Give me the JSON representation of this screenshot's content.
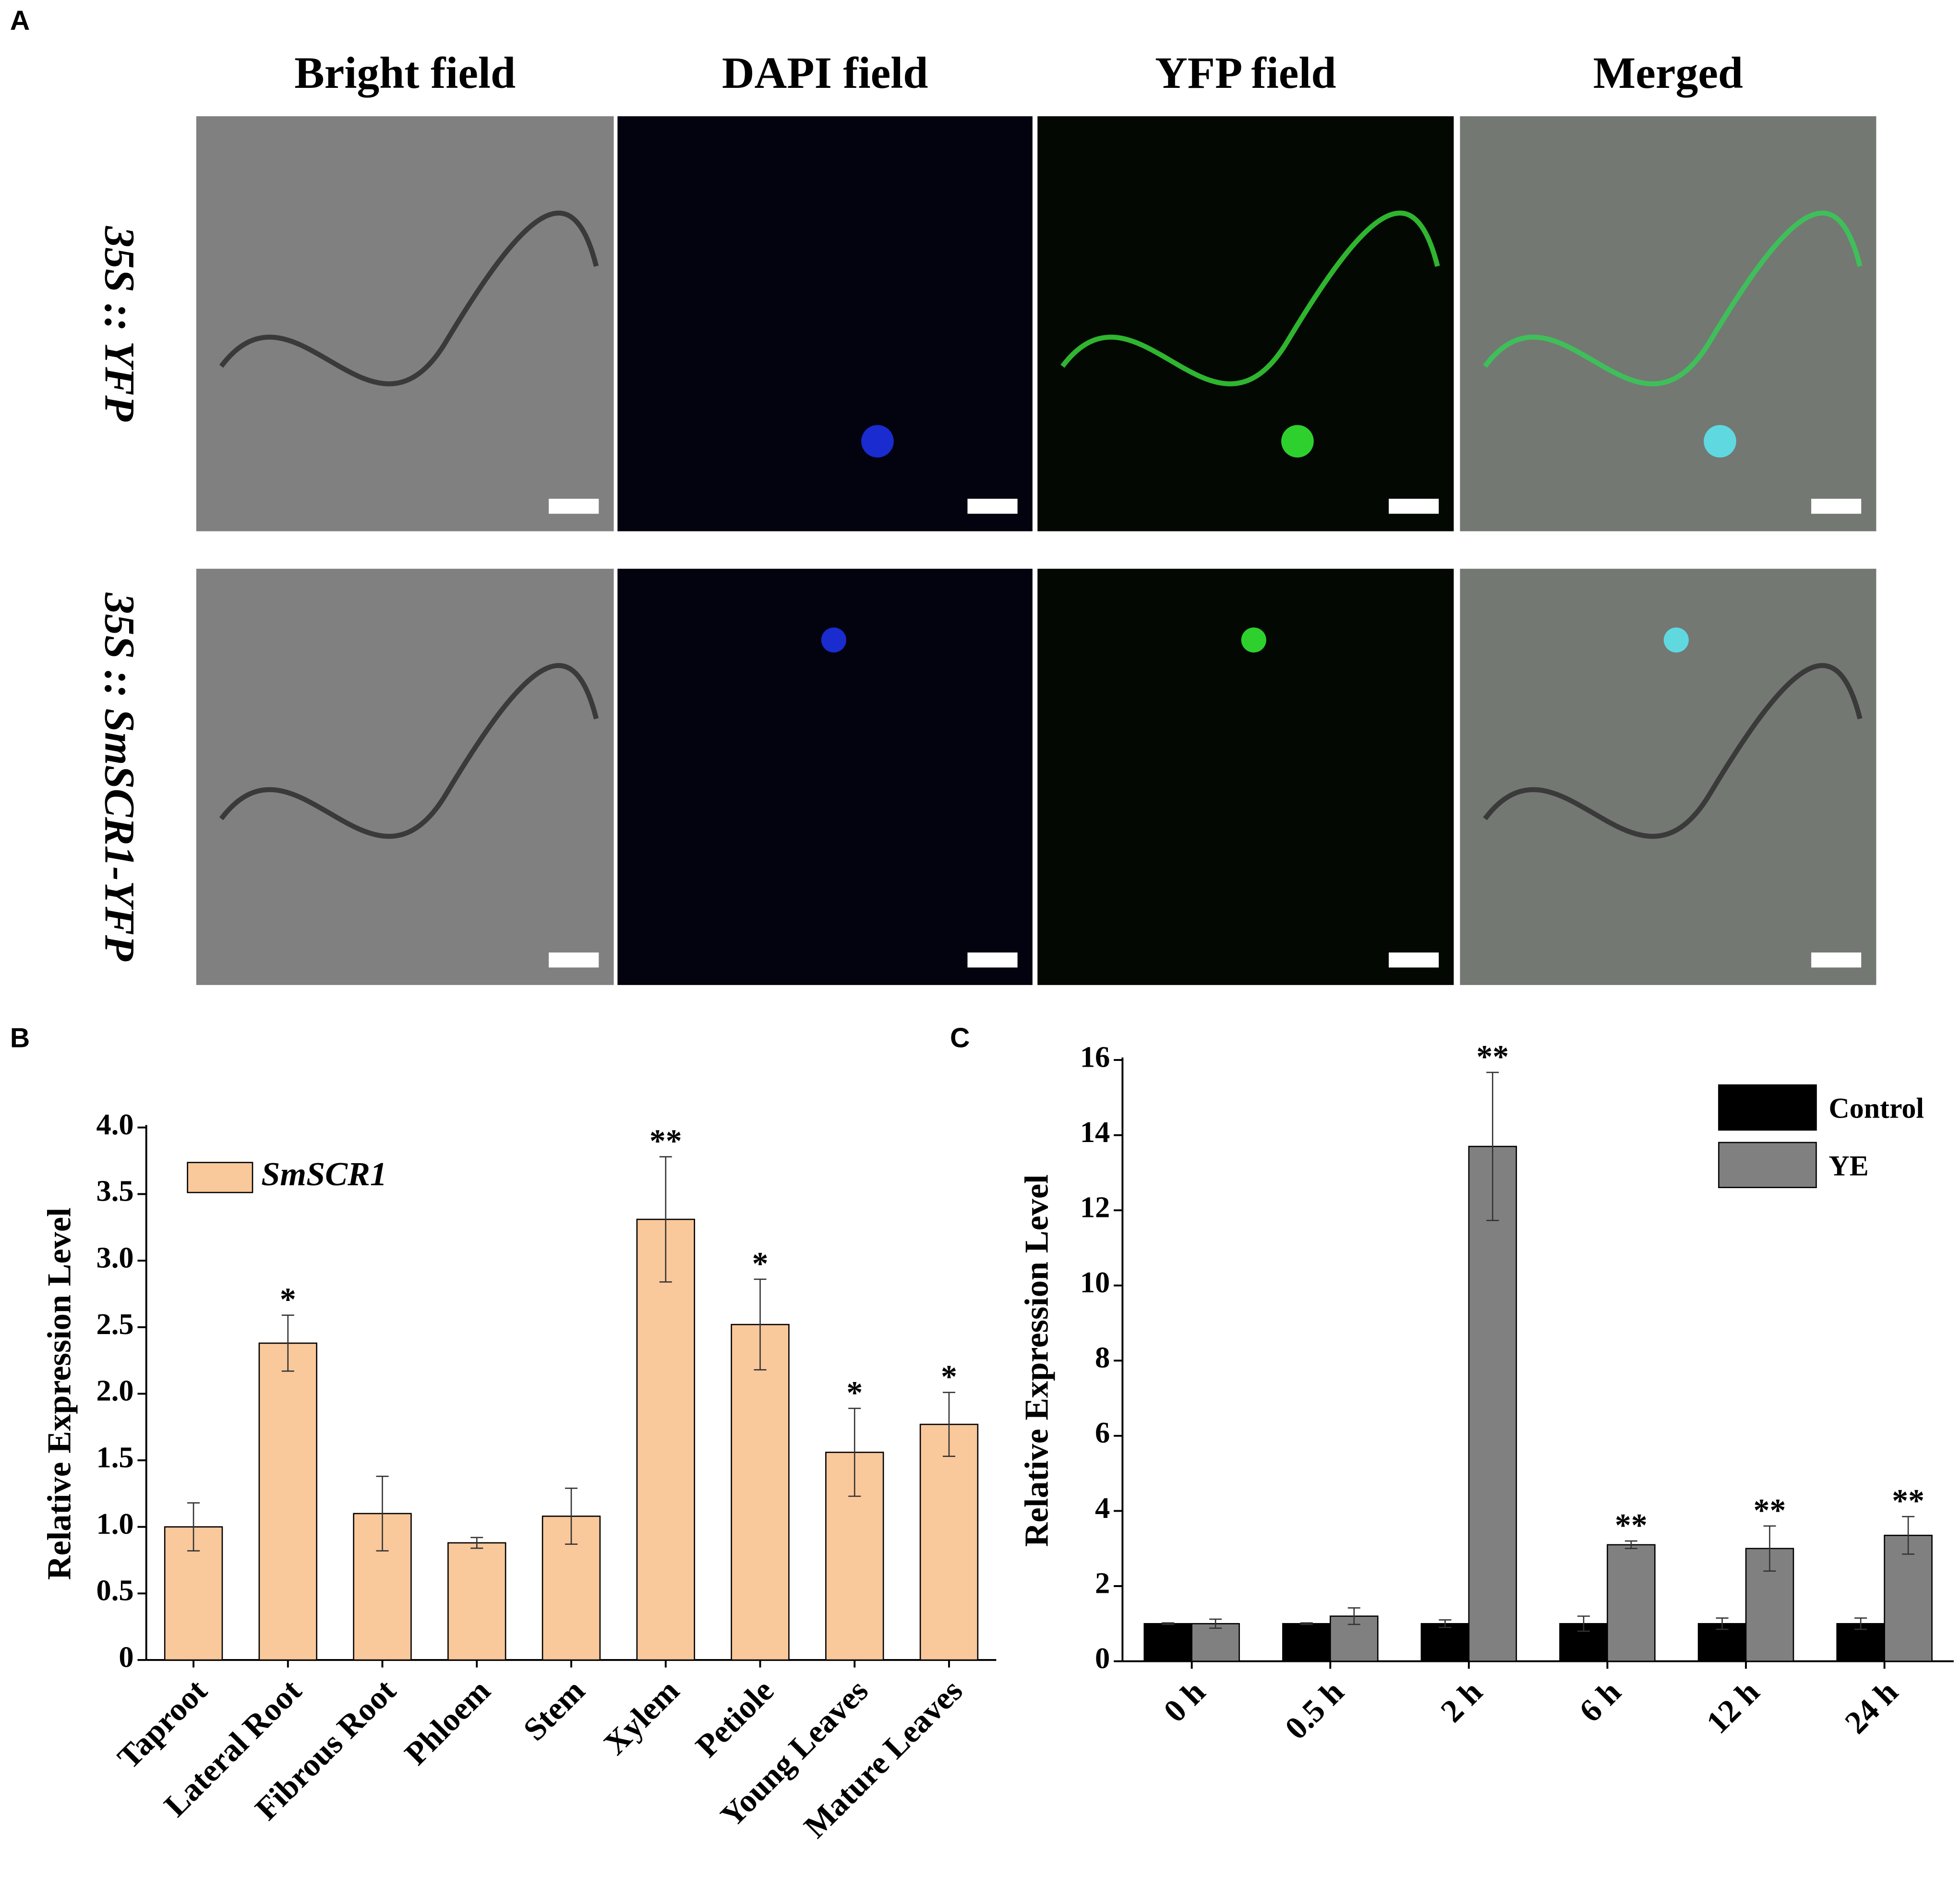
{
  "panel_labels": [
    "A",
    "B",
    "C"
  ],
  "microscopy": {
    "columns": [
      "Bright field",
      "DAPI field",
      "YFP field",
      "Merged"
    ],
    "rows": [
      "35S :: YFP",
      "35S :: SmSCR1-YFP"
    ]
  },
  "chart_data": [
    {
      "type": "bar",
      "ylabel": "Relative Expression Level",
      "categories": [
        "Taproot",
        "Lateral Root",
        "Fibrous Root",
        "Phloem",
        "Stem",
        "Xylem",
        "Petiole",
        "Young Leaves",
        "Mature Leaves"
      ],
      "series": [
        {
          "name": "SmSCR1",
          "color": "#f9c89b",
          "values": [
            1.0,
            2.38,
            1.1,
            0.88,
            1.08,
            3.31,
            2.52,
            1.56,
            1.77
          ],
          "errors": [
            0.18,
            0.21,
            0.28,
            0.04,
            0.21,
            0.47,
            0.34,
            0.33,
            0.24
          ],
          "annotations": [
            null,
            "*",
            null,
            null,
            null,
            "**",
            "*",
            "*",
            "*"
          ]
        }
      ],
      "ylim": [
        0,
        4
      ],
      "yticks": [
        0,
        0.5,
        {
          "value": 1,
          "label": "1.0"
        },
        1.5,
        {
          "value": 2,
          "label": "2.0"
        },
        2.5,
        {
          "value": 3,
          "label": "3.0"
        },
        3.5,
        {
          "value": 4,
          "label": "4.0"
        }
      ],
      "legend": "upper left"
    },
    {
      "type": "bar",
      "ylabel": "Relative Expression Level",
      "categories": [
        "0 h",
        "0.5 h",
        "2 h",
        "6 h",
        "12 h",
        "24 h"
      ],
      "series": [
        {
          "name": "Control",
          "color": "#000000",
          "values": [
            1,
            1,
            1,
            1,
            1,
            1
          ],
          "errors": [
            0.02,
            0.02,
            0.1,
            0.2,
            0.15,
            0.15
          ],
          "annotations": [
            null,
            null,
            null,
            null,
            null,
            null
          ]
        },
        {
          "name": "YE",
          "color": "#808080",
          "values": [
            1.0,
            1.2,
            13.7,
            3.1,
            3.0,
            3.35
          ],
          "errors": [
            0.12,
            0.22,
            1.97,
            0.1,
            0.6,
            0.5
          ],
          "annotations": [
            null,
            null,
            "**",
            "**",
            "**",
            "**"
          ]
        }
      ],
      "ylim": [
        0,
        16
      ],
      "yticks": [
        0,
        2,
        4,
        6,
        8,
        10,
        12,
        14,
        16
      ],
      "legend": "upper right"
    }
  ]
}
